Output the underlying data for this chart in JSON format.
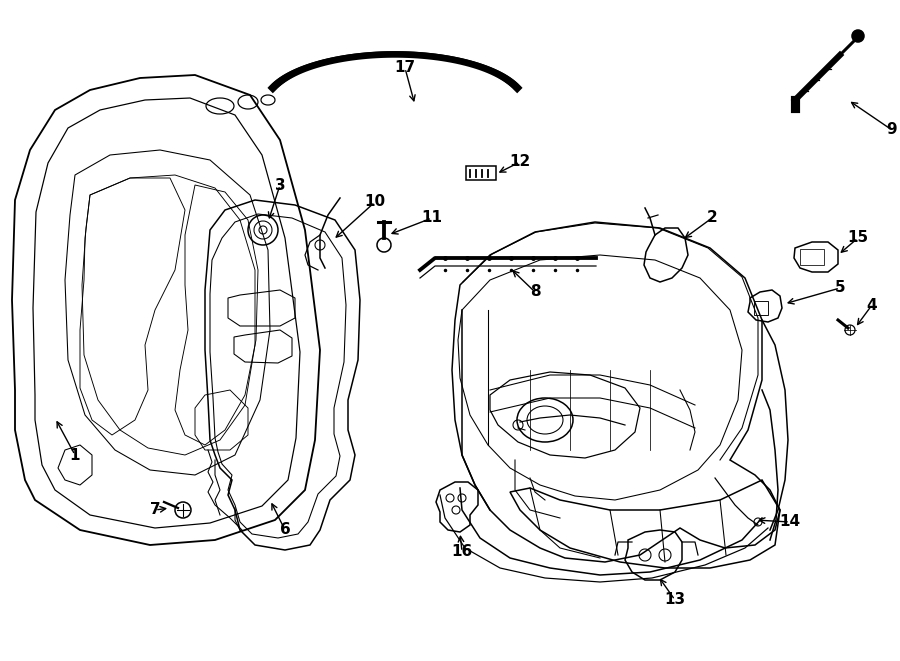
{
  "background_color": "#ffffff",
  "line_color": "#000000",
  "figsize": [
    9.0,
    6.61
  ],
  "dpi": 100,
  "lw": 1.1
}
